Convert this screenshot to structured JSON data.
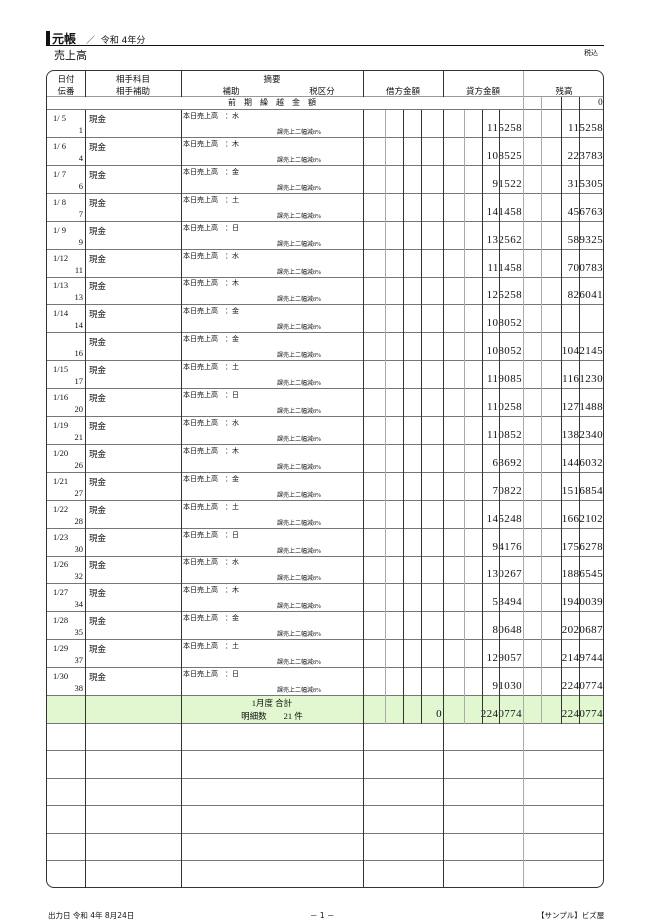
{
  "header": {
    "title": "元帳",
    "separator": "／",
    "period": "令和 4年分",
    "account": "売上高",
    "tax_mode": "税込"
  },
  "columns": {
    "date": "日付",
    "slip": "伝番",
    "counter_account": "相手科目",
    "counter_sub": "相手補助",
    "summary": "摘要",
    "sub": "補助",
    "tax_class": "税区分",
    "debit": "借方金額",
    "credit": "貸方金額",
    "balance": "残高"
  },
  "carry_over": {
    "label": "前　期　繰　越　金　額",
    "balance": "0"
  },
  "rows": [
    {
      "date": "1/ 5",
      "slip": "1",
      "account": "現金",
      "summary": "本日売上高　：水",
      "tax": "課売上二幅減8%",
      "credit": "115258",
      "balance": "115258"
    },
    {
      "date": "1/ 6",
      "slip": "4",
      "account": "現金",
      "summary": "本日売上高　：木",
      "tax": "課売上二幅減8%",
      "credit": "108525",
      "balance": "223783"
    },
    {
      "date": "1/ 7",
      "slip": "6",
      "account": "現金",
      "summary": "本日売上高　：金",
      "tax": "課売上二幅減8%",
      "credit": "91522",
      "balance": "315305"
    },
    {
      "date": "1/ 8",
      "slip": "7",
      "account": "現金",
      "summary": "本日売上高　：土",
      "tax": "課売上二幅減8%",
      "credit": "141458",
      "balance": "456763"
    },
    {
      "date": "1/ 9",
      "slip": "9",
      "account": "現金",
      "summary": "本日売上高　：日",
      "tax": "課売上二幅減8%",
      "credit": "132562",
      "balance": "589325"
    },
    {
      "date": "1/12",
      "slip": "11",
      "account": "現金",
      "summary": "本日売上高　：水",
      "tax": "課売上二幅減8%",
      "credit": "111458",
      "balance": "700783"
    },
    {
      "date": "1/13",
      "slip": "13",
      "account": "現金",
      "summary": "本日売上高　：木",
      "tax": "課売上二幅減8%",
      "credit": "125258",
      "balance": "826041"
    },
    {
      "date": "1/14",
      "slip": "14",
      "account": "現金",
      "summary": "本日売上高　：金",
      "tax": "課売上二幅減8%",
      "credit": "108052",
      "balance": ""
    },
    {
      "date": "",
      "slip": "16",
      "account": "現金",
      "summary": "本日売上高　：金",
      "tax": "課売上二幅減8%",
      "credit": "108052",
      "balance": "1042145"
    },
    {
      "date": "1/15",
      "slip": "17",
      "account": "現金",
      "summary": "本日売上高　：土",
      "tax": "課売上二幅減8%",
      "credit": "119085",
      "balance": "1161230"
    },
    {
      "date": "1/16",
      "slip": "20",
      "account": "現金",
      "summary": "本日売上高　：日",
      "tax": "課売上二幅減8%",
      "credit": "110258",
      "balance": "1271488"
    },
    {
      "date": "1/19",
      "slip": "21",
      "account": "現金",
      "summary": "本日売上高　：水",
      "tax": "課売上二幅減8%",
      "credit": "110852",
      "balance": "1382340"
    },
    {
      "date": "1/20",
      "slip": "26",
      "account": "現金",
      "summary": "本日売上高　：木",
      "tax": "課売上二幅減8%",
      "credit": "63692",
      "balance": "1446032"
    },
    {
      "date": "1/21",
      "slip": "27",
      "account": "現金",
      "summary": "本日売上高　：金",
      "tax": "課売上二幅減8%",
      "credit": "70822",
      "balance": "1516854"
    },
    {
      "date": "1/22",
      "slip": "28",
      "account": "現金",
      "summary": "本日売上高　：土",
      "tax": "課売上二幅減8%",
      "credit": "145248",
      "balance": "1662102"
    },
    {
      "date": "1/23",
      "slip": "30",
      "account": "現金",
      "summary": "本日売上高　：日",
      "tax": "課売上二幅減8%",
      "credit": "94176",
      "balance": "1756278"
    },
    {
      "date": "1/26",
      "slip": "32",
      "account": "現金",
      "summary": "本日売上高　：水",
      "tax": "課売上二幅減8%",
      "credit": "130267",
      "balance": "1886545"
    },
    {
      "date": "1/27",
      "slip": "34",
      "account": "現金",
      "summary": "本日売上高　：木",
      "tax": "課売上二幅減8%",
      "credit": "53494",
      "balance": "1940039"
    },
    {
      "date": "1/28",
      "slip": "35",
      "account": "現金",
      "summary": "本日売上高　：金",
      "tax": "課売上二幅減8%",
      "credit": "80648",
      "balance": "2020687"
    },
    {
      "date": "1/29",
      "slip": "37",
      "account": "現金",
      "summary": "本日売上高　：土",
      "tax": "課売上二幅減8%",
      "credit": "129057",
      "balance": "2149744"
    },
    {
      "date": "1/30",
      "slip": "38",
      "account": "現金",
      "summary": "本日売上高　：日",
      "tax": "課売上二幅減8%",
      "credit": "91030",
      "balance": "2240774"
    }
  ],
  "total": {
    "label": "1月度 合計",
    "count_label": "明細数　　21 件",
    "debit": "0",
    "credit": "2240774",
    "balance": "2240774"
  },
  "footer": {
    "output_date": "出力日 令和 4年 8月24日",
    "page": "－ 1 －",
    "company": "【サンプル】ビズ屋"
  },
  "colors": {
    "total_row": "#e0f7d0"
  }
}
